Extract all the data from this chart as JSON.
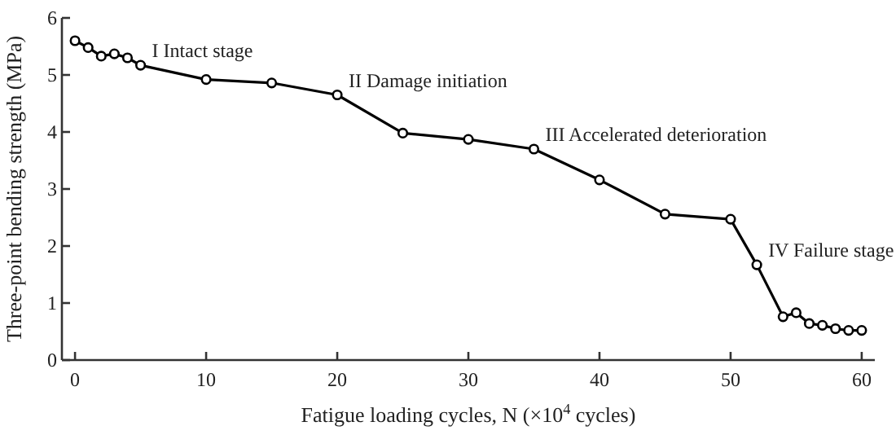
{
  "chart_data": {
    "type": "line",
    "xlabel": "Fatigue loading cycles, N (×10$^{4}$ cycles)",
    "ylabel": "Three-point bending strength (MPa)",
    "x": [
      0,
      1,
      2,
      3,
      4,
      5,
      10,
      15,
      20,
      25,
      30,
      35,
      40,
      45,
      50,
      52,
      54,
      55,
      56,
      57,
      58,
      59,
      60
    ],
    "series": [
      {
        "color": "#000000",
        "values": [
          5.6,
          5.48,
          5.33,
          5.37,
          5.3,
          5.17,
          4.92,
          4.86,
          4.65,
          3.98,
          3.87,
          3.7,
          3.16,
          2.56,
          2.47,
          1.67,
          0.76,
          0.83,
          0.64,
          0.61,
          0.55,
          0.52,
          0.52
        ]
      }
    ],
    "xlim": [
      -1,
      61
    ],
    "xticks": [
      0,
      10,
      20,
      30,
      40,
      50,
      60
    ],
    "ylim": [
      0,
      6
    ],
    "yticks": [
      0,
      1,
      2,
      3,
      4,
      5,
      6
    ],
    "marker": "circle",
    "line_style": "solid",
    "grid": false,
    "annotations": [
      {
        "text": "I Intact stage",
        "x": 5,
        "y": 5.17
      },
      {
        "text": "II Damage initiation",
        "x": 20,
        "y": 4.65
      },
      {
        "text": "III Accelerated deterioration",
        "x": 35,
        "y": 3.7
      },
      {
        "text": "IV Failure stage",
        "x": 52,
        "y": 1.67
      }
    ]
  }
}
